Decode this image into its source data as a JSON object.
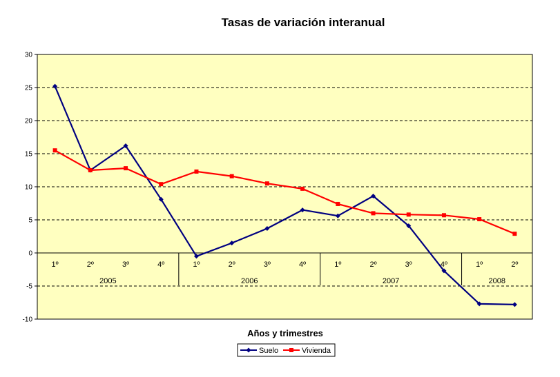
{
  "chart_data": {
    "type": "line",
    "title": "Tasas de variación interanual",
    "xlabel": "Años y trimestres",
    "ylabel": "",
    "ylim": [
      -10,
      30
    ],
    "yticks": [
      -10,
      -5,
      0,
      5,
      10,
      15,
      20,
      25,
      30
    ],
    "grid": "horizontal dashed",
    "legend": "bottom",
    "categories": [
      "1º",
      "2º",
      "3º",
      "4º",
      "1º",
      "2º",
      "3º",
      "4º",
      "1º",
      "2º",
      "3º",
      "4º",
      "1º",
      "2º"
    ],
    "groups": [
      {
        "label": "2005",
        "count": 4
      },
      {
        "label": "2006",
        "count": 4
      },
      {
        "label": "2007",
        "count": 4
      },
      {
        "label": "2008",
        "count": 2
      }
    ],
    "series": [
      {
        "name": "Suelo",
        "color": "#000080",
        "marker": "diamond",
        "values": [
          25.2,
          12.5,
          16.2,
          8.1,
          -0.5,
          1.5,
          3.7,
          6.5,
          5.6,
          8.6,
          4.1,
          -2.7,
          -7.7,
          -7.8
        ]
      },
      {
        "name": "Vivienda",
        "color": "#ff0000",
        "marker": "square",
        "values": [
          15.5,
          12.5,
          12.8,
          10.4,
          12.3,
          11.6,
          10.5,
          9.7,
          7.4,
          6.0,
          5.8,
          5.7,
          5.1,
          2.9
        ]
      }
    ]
  },
  "colors": {
    "plot_background": "#ffffc0",
    "gridline": "#000000",
    "axis": "#000000"
  }
}
